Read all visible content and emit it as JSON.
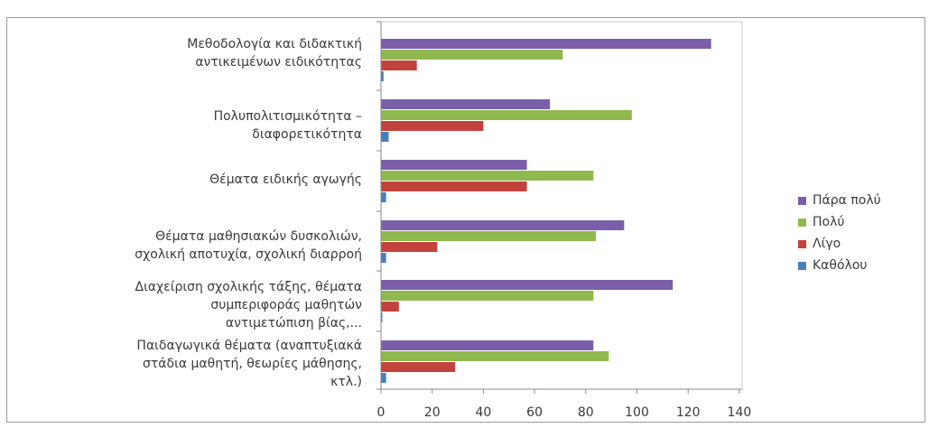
{
  "chart_data": {
    "type": "bar",
    "orientation": "horizontal",
    "categories": [
      [
        "Μεθοδολογία και διδακτική",
        "αντικειμένων ειδικότητας"
      ],
      [
        "Πολυπολιτισμικότητα –",
        "διαφορετικότητα"
      ],
      [
        "Θέματα ειδικής αγωγής"
      ],
      [
        "Θέματα μαθησιακών δυσκολιών,",
        "σχολική αποτυχία, σχολική διαρροή"
      ],
      [
        "Διαχείριση σχολικής τάξης, θέματα",
        "συμπεριφοράς μαθητών",
        "αντιμετώπιση βίας,..."
      ],
      [
        "Παιδαγωγικά θέματα (αναπτυξιακά",
        "στάδια μαθητή, θεωρίες μάθησης,",
        "κτλ.)"
      ]
    ],
    "series": [
      {
        "name": "Πάρα πολύ",
        "color": "#7a5fa8",
        "values": [
          129,
          66,
          57,
          95,
          114,
          83
        ]
      },
      {
        "name": "Πολύ",
        "color": "#8fb84e",
        "values": [
          71,
          98,
          83,
          84,
          83,
          89
        ]
      },
      {
        "name": "Λίγο",
        "color": "#c2433d",
        "values": [
          14,
          40,
          57,
          22,
          7,
          29
        ]
      },
      {
        "name": "Καθόλου",
        "color": "#4a7ebb",
        "values": [
          1,
          3,
          2,
          2,
          0,
          2
        ]
      }
    ],
    "xlim": [
      0,
      140
    ],
    "ticks": [
      "0",
      "20",
      "40",
      "60",
      "80",
      "100",
      "120",
      "140"
    ],
    "legend_position": "right",
    "grid": false
  }
}
